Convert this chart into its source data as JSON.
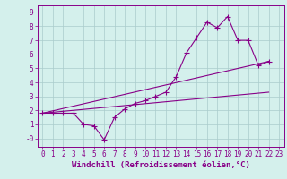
{
  "xlabel": "Windchill (Refroidissement éolien,°C)",
  "background_color": "#d4f0ec",
  "grid_color": "#aacccc",
  "line_color": "#880088",
  "xlim": [
    -0.5,
    23.5
  ],
  "ylim": [
    -0.6,
    9.5
  ],
  "xticks": [
    0,
    1,
    2,
    3,
    4,
    5,
    6,
    7,
    8,
    9,
    10,
    11,
    12,
    13,
    14,
    15,
    16,
    17,
    18,
    19,
    20,
    21,
    22,
    23
  ],
  "yticks": [
    0,
    1,
    2,
    3,
    4,
    5,
    6,
    7,
    8,
    9
  ],
  "ytick_labels": [
    "-0",
    "1",
    "2",
    "3",
    "4",
    "5",
    "6",
    "7",
    "8",
    "9"
  ],
  "series1_x": [
    0,
    1,
    2,
    3,
    4,
    5,
    6,
    7,
    8,
    9,
    10,
    11,
    12,
    13,
    14,
    15,
    16,
    17,
    18,
    19,
    20,
    21,
    22
  ],
  "series1_y": [
    1.8,
    1.8,
    1.8,
    1.8,
    1.0,
    0.9,
    -0.1,
    1.5,
    2.1,
    2.5,
    2.7,
    3.0,
    3.3,
    4.4,
    6.1,
    7.2,
    8.3,
    7.9,
    8.7,
    7.0,
    7.0,
    5.2,
    5.5
  ],
  "series2_x": [
    0,
    22
  ],
  "series2_y": [
    1.8,
    5.5
  ],
  "series3_x": [
    0,
    22
  ],
  "series3_y": [
    1.8,
    3.3
  ],
  "marker": "+",
  "markersize": 4,
  "linewidth": 0.8,
  "tick_fontsize": 5.5,
  "xlabel_fontsize": 6.5
}
